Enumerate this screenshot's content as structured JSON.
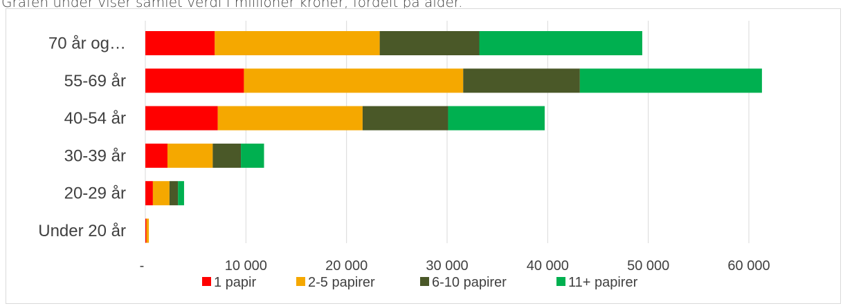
{
  "caption": "Grafen under viser samlet verdi i millioner kroner, fordelt på alder.",
  "chart_data": {
    "type": "bar",
    "orientation": "horizontal",
    "stacked": true,
    "title": "",
    "xlabel": "",
    "ylabel": "",
    "categories": [
      "70 år og…",
      "55-69 år",
      "40-54 år",
      "30-39 år",
      "20-29 år",
      "Under 20 år"
    ],
    "series": [
      {
        "name": "1 papir",
        "color": "#ff0000",
        "values": [
          6900,
          9800,
          7200,
          2200,
          750,
          100
        ]
      },
      {
        "name": "2-5 papirer",
        "color": "#f5a800",
        "values": [
          16400,
          21800,
          14400,
          4500,
          1650,
          250
        ]
      },
      {
        "name": "6-10 papirer",
        "color": "#4a5828",
        "values": [
          9900,
          11600,
          8500,
          2800,
          850,
          0
        ]
      },
      {
        "name": "11+ papirer",
        "color": "#00b050",
        "values": [
          16200,
          18100,
          9600,
          2300,
          600,
          0
        ]
      }
    ],
    "xlim": [
      0,
      65000
    ],
    "xticks": [
      0,
      10000,
      20000,
      30000,
      40000,
      50000,
      60000
    ],
    "xtick_labels": [
      "-",
      "10 000",
      "20 000",
      "30 000",
      "40 000",
      "50 000",
      "60 000"
    ],
    "grid": true,
    "legend_position": "bottom"
  }
}
